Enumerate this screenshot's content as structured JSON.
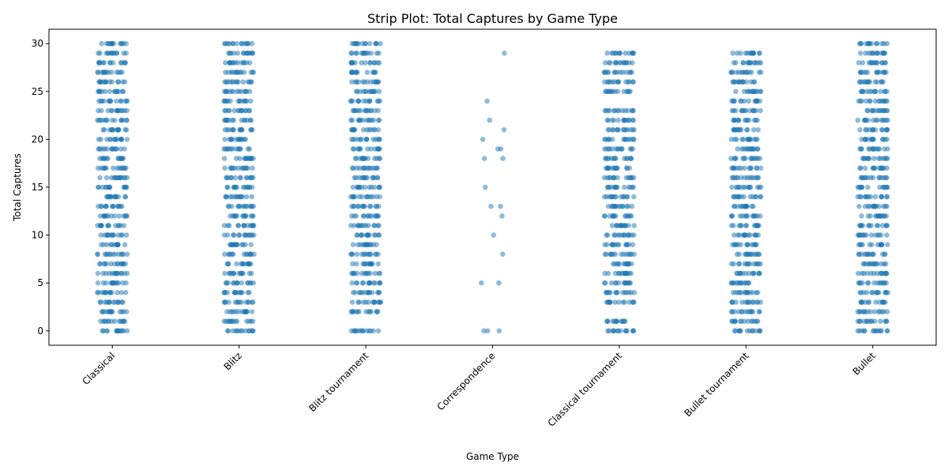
{
  "chart_data": {
    "type": "scatter",
    "subtype": "strip",
    "title": "Strip Plot: Total Captures by Game Type",
    "xlabel": "Game Type",
    "ylabel": "Total Captures",
    "ylim": [
      -1.5,
      31.5
    ],
    "yticks": [
      0,
      5,
      10,
      15,
      20,
      25,
      30
    ],
    "grid": false,
    "legend": "none",
    "point_color": "#1f77b4",
    "point_alpha": 0.5,
    "categories": [
      "Classical",
      "Blitz",
      "Blitz tournament",
      "Correspondence",
      "Classical tournament",
      "Bullet tournament",
      "Bullet"
    ],
    "series": [
      {
        "category": "Classical",
        "values": [
          0,
          1,
          2,
          3,
          4,
          5,
          6,
          7,
          8,
          9,
          10,
          11,
          12,
          13,
          14,
          15,
          16,
          17,
          18,
          19,
          20,
          21,
          22,
          23,
          24,
          25,
          26,
          27,
          28,
          29,
          30
        ]
      },
      {
        "category": "Blitz",
        "values": [
          0,
          1,
          2,
          3,
          4,
          5,
          6,
          7,
          8,
          9,
          10,
          11,
          12,
          13,
          14,
          15,
          16,
          17,
          18,
          19,
          20,
          21,
          22,
          23,
          24,
          25,
          26,
          27,
          28,
          29,
          30
        ]
      },
      {
        "category": "Blitz tournament",
        "values": [
          0,
          2,
          3,
          4,
          5,
          6,
          7,
          8,
          9,
          10,
          11,
          12,
          13,
          14,
          15,
          16,
          17,
          18,
          19,
          20,
          21,
          22,
          23,
          24,
          25,
          26,
          27,
          28,
          29,
          30
        ]
      },
      {
        "category": "Correspondence",
        "values": [
          0,
          0,
          0,
          5,
          5,
          8,
          10,
          12,
          13,
          13,
          15,
          18,
          18,
          19,
          19,
          20,
          21,
          22,
          24,
          29
        ]
      },
      {
        "category": "Classical tournament",
        "values": [
          0,
          1,
          3,
          4,
          5,
          6,
          7,
          8,
          9,
          10,
          11,
          12,
          13,
          14,
          15,
          16,
          17,
          18,
          19,
          20,
          21,
          22,
          23,
          25,
          26,
          27,
          28,
          29
        ]
      },
      {
        "category": "Bullet tournament",
        "values": [
          0,
          1,
          2,
          3,
          4,
          5,
          6,
          7,
          8,
          9,
          10,
          11,
          12,
          13,
          14,
          15,
          16,
          17,
          18,
          19,
          20,
          21,
          22,
          23,
          24,
          25,
          26,
          27,
          28,
          29
        ]
      },
      {
        "category": "Bullet",
        "values": [
          0,
          1,
          2,
          3,
          4,
          5,
          6,
          7,
          8,
          9,
          10,
          11,
          12,
          13,
          14,
          15,
          16,
          17,
          18,
          19,
          20,
          21,
          22,
          23,
          24,
          25,
          26,
          27,
          28,
          29,
          30
        ]
      }
    ]
  }
}
